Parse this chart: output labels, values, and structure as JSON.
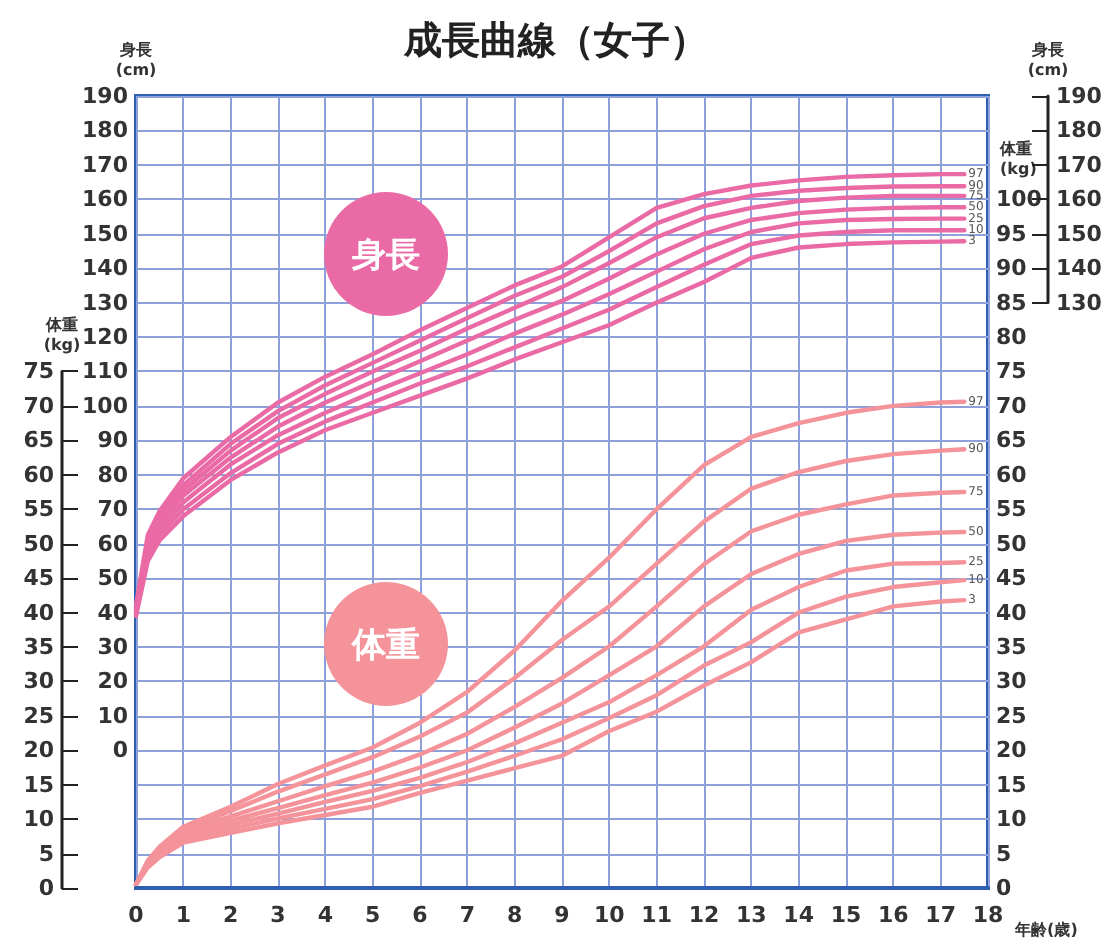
{
  "chart_data": [
    {
      "type": "line",
      "title": "成長曲線（女子）",
      "ylabel": "身長\n(cm)",
      "y2label": "身長\n(cm)",
      "annotations": [
        "身長"
      ],
      "x": [
        0,
        0.25,
        0.5,
        1,
        2,
        3,
        4,
        5,
        6,
        7,
        8,
        9,
        10,
        11,
        12,
        13,
        14,
        15,
        16,
        17,
        17.5
      ],
      "xlim": [
        0,
        18
      ],
      "tick_labels": "y",
      "ylim": [
        -40,
        190
      ],
      "yticks": [
        0,
        10,
        20,
        30,
        40,
        50,
        60,
        70,
        80,
        90,
        100,
        110,
        120,
        130,
        140,
        150,
        160,
        170,
        180,
        190
      ],
      "y2lim": [
        -40,
        190
      ],
      "y2ticks": [
        130,
        140,
        150,
        160,
        170,
        180,
        190
      ],
      "legend": false,
      "marker": "none",
      "line_style": "solid",
      "series": [
        {
          "name": "97",
          "color": "#ea6aa5",
          "values": [
            42,
            62.5,
            69.5,
            79,
            91,
            101,
            108.5,
            115,
            122,
            128.5,
            135,
            140.5,
            149,
            157.5,
            161.5,
            164,
            165.5,
            166.5,
            167,
            167.3,
            167.3
          ]
        },
        {
          "name": "90",
          "color": "#ea6aa5",
          "values": [
            41.5,
            61,
            68,
            77,
            89,
            98.5,
            106,
            112.5,
            119,
            125.5,
            132,
            137.5,
            145,
            153,
            158,
            161,
            162.5,
            163.3,
            163.7,
            163.8,
            163.8
          ]
        },
        {
          "name": "75",
          "color": "#ea6aa5",
          "values": [
            41,
            60,
            67,
            75.5,
            87,
            96.5,
            103.5,
            110,
            116,
            122.5,
            128.5,
            134.5,
            141.5,
            149,
            154.5,
            157.5,
            159.5,
            160.5,
            161,
            161,
            161
          ]
        },
        {
          "name": "50",
          "color": "#ea6aa5",
          "values": [
            40.5,
            59,
            65.5,
            74,
            85,
            94,
            101,
            107,
            113,
            119,
            125,
            130.5,
            137,
            144,
            150,
            154,
            156,
            157,
            157.5,
            157.7,
            157.7
          ]
        },
        {
          "name": "25",
          "color": "#ea6aa5",
          "values": [
            40,
            58,
            64,
            72,
            83,
            91.5,
            98,
            104,
            109.5,
            115,
            121,
            126.5,
            132.5,
            139,
            145.5,
            150.5,
            153,
            154,
            154.3,
            154.4,
            154.4
          ]
        },
        {
          "name": "10",
          "color": "#ea6aa5",
          "values": [
            39.5,
            56.5,
            62.5,
            70,
            80.5,
            89,
            95.5,
            101,
            106.5,
            111.5,
            117,
            122.5,
            128,
            134.5,
            141,
            147,
            149.5,
            150.5,
            151,
            151,
            151
          ]
        },
        {
          "name": "3",
          "color": "#ea6aa5",
          "values": [
            39,
            55,
            61,
            68,
            78.5,
            86.5,
            93,
            98,
            103,
            108,
            113.5,
            118.5,
            123.5,
            130,
            136,
            143,
            146,
            147,
            147.5,
            147.7,
            147.8
          ]
        }
      ]
    },
    {
      "type": "line",
      "xlabel": "年齢(歳)",
      "ylabel": "体重\n(kg)",
      "y2label": "体重\n(kg)",
      "annotations": [
        "体重"
      ],
      "x": [
        0,
        0.25,
        0.5,
        1,
        2,
        3,
        4,
        5,
        6,
        7,
        8,
        9,
        10,
        11,
        12,
        13,
        14,
        15,
        16,
        17,
        17.5
      ],
      "xlim": [
        0,
        18
      ],
      "xticks": [
        0,
        1,
        2,
        3,
        4,
        5,
        6,
        7,
        8,
        9,
        10,
        11,
        12,
        13,
        14,
        15,
        16,
        17,
        18
      ],
      "ylim": [
        0,
        115
      ],
      "yticks": [
        0,
        5,
        10,
        15,
        20,
        25,
        30,
        35,
        40,
        45,
        50,
        55,
        60,
        65,
        70,
        75
      ],
      "y2lim": [
        0,
        115
      ],
      "y2ticks": [
        0,
        5,
        10,
        15,
        20,
        25,
        30,
        35,
        40,
        45,
        50,
        55,
        60,
        65,
        70,
        75,
        80,
        85,
        90,
        95,
        100
      ],
      "grid": true,
      "legend": false,
      "marker": "none",
      "line_style": "solid",
      "series": [
        {
          "name": "97",
          "color": "#f4939a",
          "values": [
            0.5,
            4,
            6,
            8.9,
            11.8,
            15.1,
            17.8,
            20.4,
            24,
            28.5,
            34.5,
            41.7,
            48,
            55,
            61.4,
            65.5,
            67.5,
            69,
            70,
            70.5,
            70.6
          ]
        },
        {
          "name": "90",
          "color": "#f4939a",
          "values": [
            0.5,
            3.8,
            5.6,
            8.4,
            11.2,
            14,
            16.5,
            19,
            22,
            25.5,
            30.5,
            36,
            40.9,
            47.1,
            53.2,
            58,
            60.4,
            62,
            63,
            63.5,
            63.7
          ]
        },
        {
          "name": "75",
          "color": "#f4939a",
          "values": [
            0.5,
            3.6,
            5.3,
            8,
            10.4,
            12.6,
            14.8,
            16.9,
            19.4,
            22.4,
            26.3,
            30.5,
            35.1,
            40.9,
            47,
            51.8,
            54.2,
            55.7,
            57,
            57.4,
            57.5
          ]
        },
        {
          "name": "50",
          "color": "#f4939a",
          "values": [
            0.5,
            3.4,
            5.1,
            7.6,
            9.8,
            11.6,
            13.5,
            15.3,
            17.5,
            20,
            23.3,
            26.8,
            30.9,
            35.1,
            40.9,
            45.6,
            48.5,
            50.4,
            51.3,
            51.6,
            51.7
          ]
        },
        {
          "name": "25",
          "color": "#f4939a",
          "values": [
            0.5,
            3.3,
            4.9,
            7.2,
            9.2,
            10.8,
            12.5,
            14.1,
            16,
            18.3,
            21,
            24,
            27,
            30.9,
            35.1,
            40.4,
            43.7,
            46.1,
            47.1,
            47.2,
            47.3
          ]
        },
        {
          "name": "10",
          "color": "#f4939a",
          "values": [
            0.5,
            3.1,
            4.7,
            6.9,
            8.6,
            10.1,
            11.5,
            12.9,
            14.8,
            16.9,
            19.2,
            21.6,
            24.7,
            28,
            32.3,
            35.7,
            40,
            42.3,
            43.7,
            44.4,
            44.7
          ]
        },
        {
          "name": "3",
          "color": "#f4939a",
          "values": [
            0.5,
            3,
            4.5,
            6.6,
            8,
            9.4,
            10.6,
            11.8,
            13.8,
            15.6,
            17.4,
            19.2,
            22.8,
            25.6,
            29.4,
            32.8,
            37.1,
            39,
            40.9,
            41.6,
            41.8
          ]
        }
      ]
    }
  ]
}
